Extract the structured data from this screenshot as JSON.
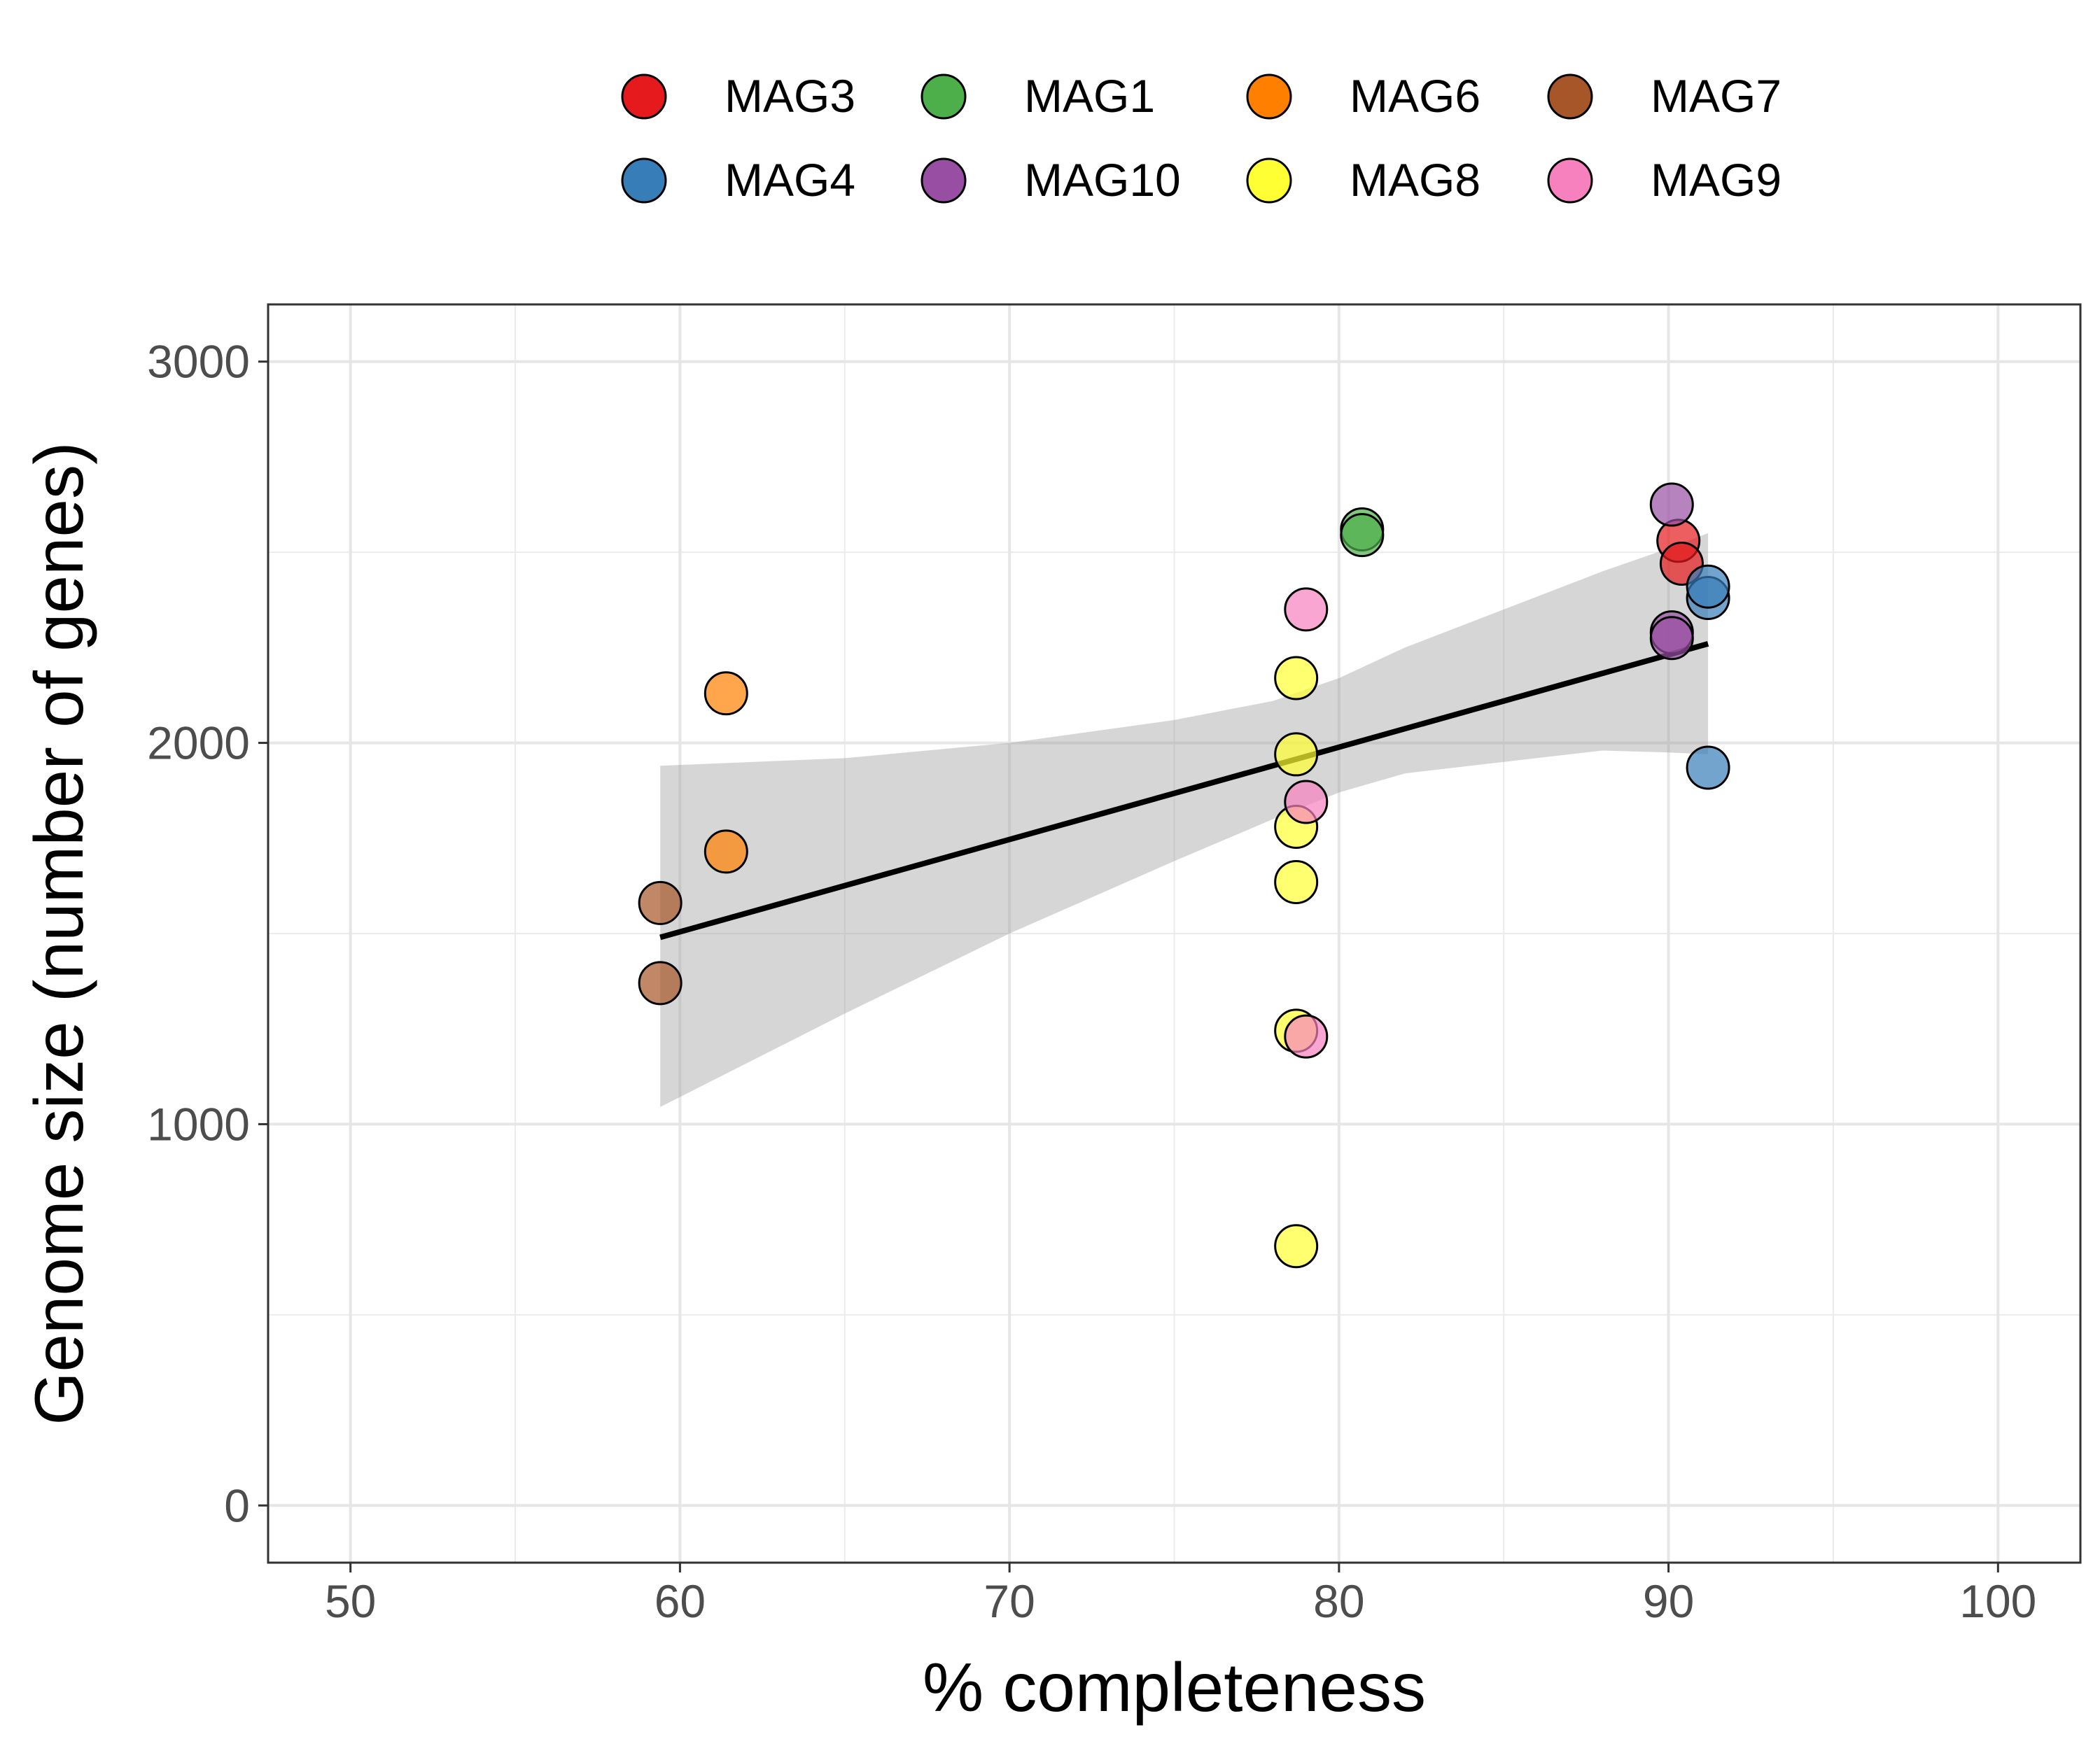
{
  "chart_data": {
    "type": "scatter",
    "title": "",
    "xlabel": "% completeness",
    "ylabel": "Genome size (number of genes)",
    "xlim": [
      47.5,
      102.5
    ],
    "ylim": [
      -150,
      3150
    ],
    "x_ticks": [
      50,
      60,
      70,
      80,
      90,
      100
    ],
    "x_tick_labels": [
      "50",
      "60",
      "70",
      "80",
      "90",
      "100"
    ],
    "y_ticks": [
      0,
      1000,
      2000,
      3000
    ],
    "y_tick_labels": [
      "0",
      "1000",
      "2000",
      "3000"
    ],
    "grid": true,
    "legend_position": "top",
    "point_alpha": 0.7,
    "series": [
      {
        "name": "MAG3",
        "color": "#E41A1C",
        "points": [
          [
            90.3,
            2530
          ],
          [
            90.4,
            2470
          ]
        ]
      },
      {
        "name": "MAG4",
        "color": "#377EB8",
        "points": [
          [
            91.2,
            2380
          ],
          [
            91.2,
            2410
          ],
          [
            91.2,
            1935
          ]
        ]
      },
      {
        "name": "MAG1",
        "color": "#4DAF4A",
        "points": [
          [
            80.7,
            2560
          ],
          [
            80.7,
            2545
          ]
        ]
      },
      {
        "name": "MAG10",
        "color": "#984EA3",
        "points": [
          [
            90.1,
            2625
          ],
          [
            90.1,
            2290
          ],
          [
            90.1,
            2275
          ]
        ]
      },
      {
        "name": "MAG6",
        "color": "#FF7F00",
        "points": [
          [
            61.4,
            2130
          ],
          [
            61.4,
            1715
          ]
        ]
      },
      {
        "name": "MAG8",
        "color": "#FFFF33",
        "points": [
          [
            78.7,
            2170
          ],
          [
            78.7,
            1970
          ],
          [
            78.7,
            1780
          ],
          [
            78.7,
            1635
          ],
          [
            78.7,
            1245
          ],
          [
            78.7,
            680
          ]
        ]
      },
      {
        "name": "MAG7",
        "color": "#A65628",
        "points": [
          [
            59.4,
            1580
          ],
          [
            59.4,
            1370
          ]
        ]
      },
      {
        "name": "MAG9",
        "color": "#F781BF",
        "points": [
          [
            79.0,
            2350
          ],
          [
            79.0,
            1845
          ],
          [
            79.0,
            1230
          ]
        ]
      }
    ],
    "fit_line": {
      "color": "#000000",
      "x": [
        59.4,
        91.2
      ],
      "y": [
        1490,
        2260
      ]
    },
    "confidence_band": {
      "color": "#999999",
      "x": [
        59.4,
        65,
        70,
        75,
        78,
        80,
        82,
        85,
        88,
        90,
        91.2
      ],
      "upper": [
        1940,
        1960,
        2000,
        2060,
        2110,
        2170,
        2250,
        2350,
        2450,
        2510,
        2550
      ],
      "lower": [
        1045,
        1290,
        1500,
        1690,
        1800,
        1870,
        1920,
        1950,
        1980,
        1975,
        1970
      ]
    }
  }
}
